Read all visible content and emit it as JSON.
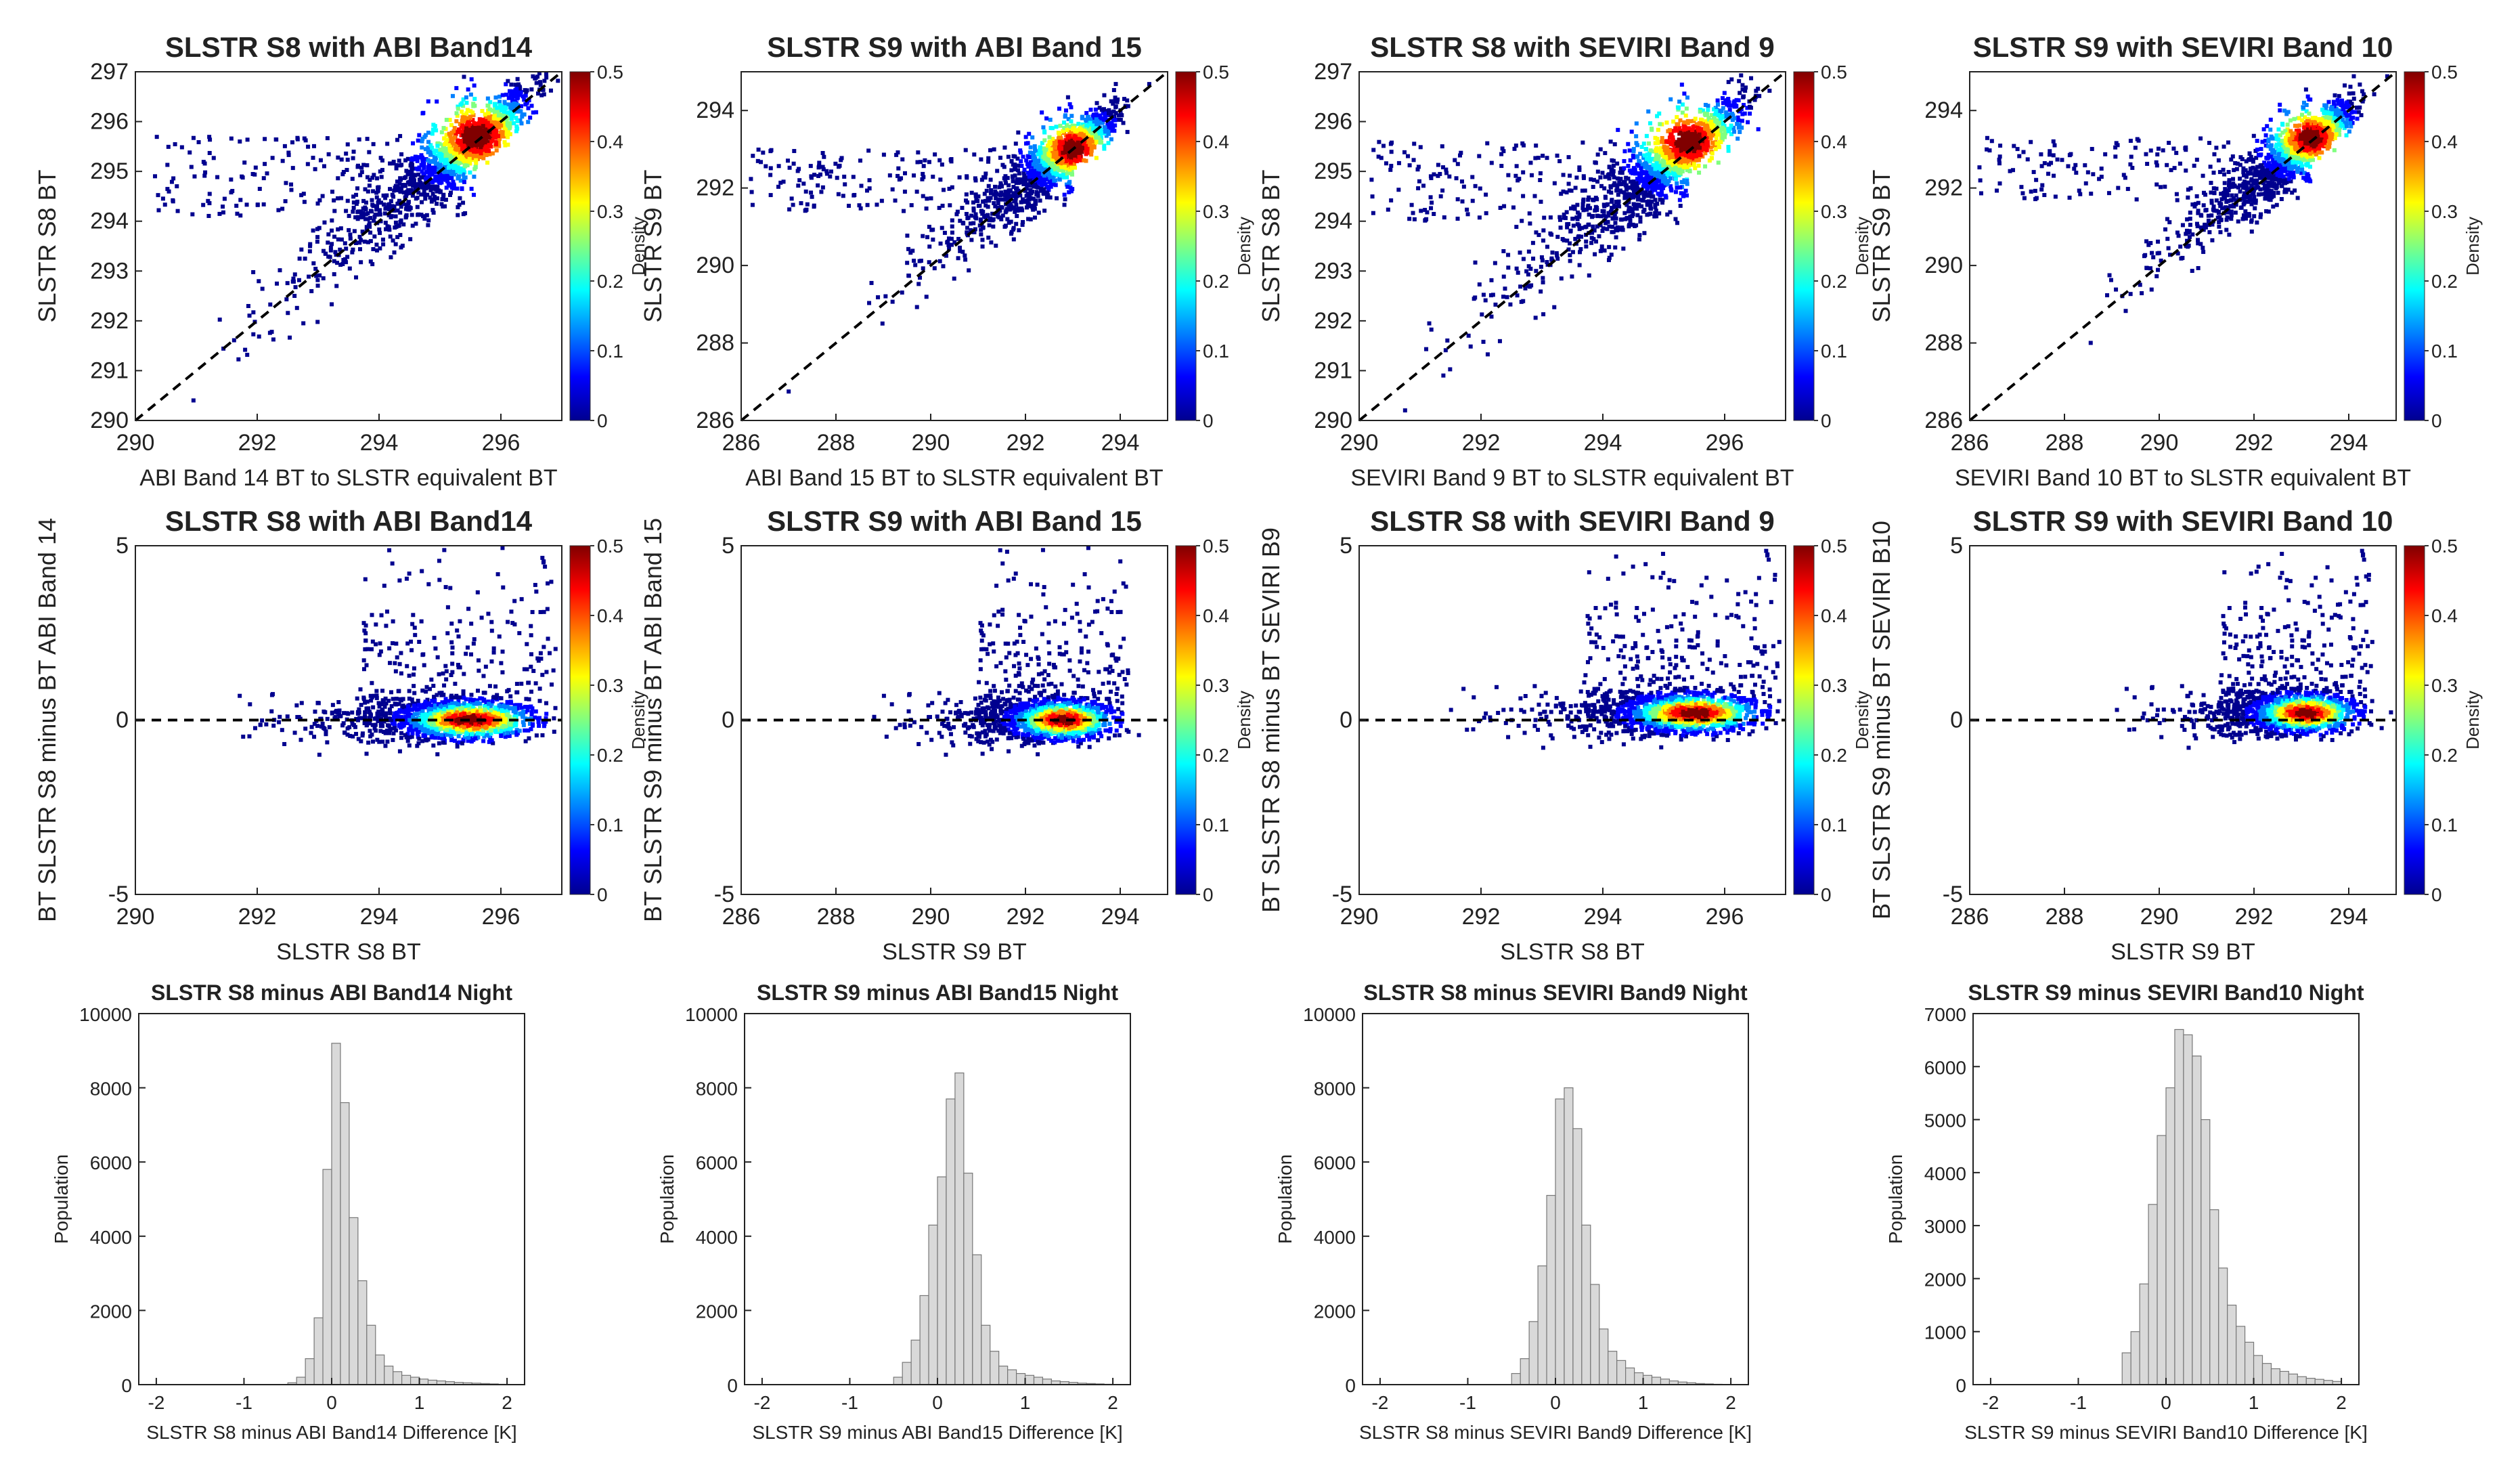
{
  "figure": {
    "colorbar_label": "Density",
    "colorbar_ticks": [
      "0",
      "0.1",
      "0.2",
      "0.3",
      "0.4",
      "0.5"
    ],
    "colorbar_stops": [
      "#00008f",
      "#0000ff",
      "#0080ff",
      "#00ffff",
      "#80ff80",
      "#ffff00",
      "#ff8000",
      "#ff0000",
      "#800000"
    ],
    "point_color": "#00008f"
  },
  "chart_data": [
    {
      "panel": "scatter",
      "type": "scatter",
      "title": "SLSTR S8 with ABI Band14",
      "xlabel": "ABI Band 14 BT to SLSTR equivalent BT",
      "ylabel": "SLSTR S8 BT",
      "xlim": [
        290,
        297
      ],
      "ylim": [
        290,
        297
      ],
      "xticks": [
        290,
        292,
        294,
        296
      ],
      "yticks": [
        290,
        291,
        292,
        293,
        294,
        295,
        296,
        297
      ],
      "center": [
        295.6,
        295.7
      ],
      "one_to_one_line": true,
      "colorbar": {
        "label": "Density",
        "range": [
          0,
          0.5
        ]
      }
    },
    {
      "panel": "scatter",
      "type": "scatter",
      "title": "SLSTR S9 with ABI Band 15",
      "xlabel": "ABI Band 15 BT to SLSTR equivalent BT",
      "ylabel": "SLSTR S9 BT",
      "xlim": [
        286,
        295
      ],
      "ylim": [
        286,
        295
      ],
      "xticks": [
        286,
        288,
        290,
        292,
        294
      ],
      "yticks": [
        286,
        288,
        290,
        292,
        294
      ],
      "center": [
        293.0,
        293.0
      ],
      "one_to_one_line": true,
      "colorbar": {
        "label": "Density",
        "range": [
          0,
          0.5
        ]
      }
    },
    {
      "panel": "scatter",
      "type": "scatter",
      "title": "SLSTR S8 with SEVIRI Band 9",
      "xlabel": "SEVIRI Band 9 BT to SLSTR equivalent BT",
      "ylabel": "SLSTR S8 BT",
      "xlim": [
        290,
        297
      ],
      "ylim": [
        290,
        297
      ],
      "xticks": [
        290,
        292,
        294,
        296
      ],
      "yticks": [
        290,
        291,
        292,
        293,
        294,
        295,
        296,
        297
      ],
      "center": [
        295.4,
        295.6
      ],
      "one_to_one_line": true,
      "colorbar": {
        "label": "Density",
        "range": [
          0,
          0.5
        ]
      }
    },
    {
      "panel": "scatter",
      "type": "scatter",
      "title": "SLSTR S9 with SEVIRI Band 10",
      "xlabel": "SEVIRI Band 10 BT to SLSTR equivalent BT",
      "ylabel": "SLSTR S9 BT",
      "xlim": [
        286,
        295
      ],
      "ylim": [
        286,
        295
      ],
      "xticks": [
        286,
        288,
        290,
        292,
        294
      ],
      "yticks": [
        286,
        288,
        290,
        292,
        294
      ],
      "center": [
        293.2,
        293.3
      ],
      "one_to_one_line": true,
      "colorbar": {
        "label": "Density",
        "range": [
          0,
          0.5
        ]
      }
    },
    {
      "panel": "difference",
      "type": "scatter",
      "title": "SLSTR S8 with ABI Band14",
      "xlabel": "SLSTR S8 BT",
      "ylabel": "BT SLSTR S8 minus BT ABI Band 14",
      "xlim": [
        290,
        297
      ],
      "ylim": [
        -5,
        5
      ],
      "xticks": [
        290,
        292,
        294,
        296
      ],
      "yticks": [
        -5,
        0,
        5
      ],
      "center": [
        295.5,
        0.0
      ],
      "zero_line": true,
      "colorbar": {
        "label": "Density",
        "range": [
          0,
          0.5
        ]
      }
    },
    {
      "panel": "difference",
      "type": "scatter",
      "title": "SLSTR S9 with ABI Band 15",
      "xlabel": "SLSTR S9 BT",
      "ylabel": "BT SLSTR S9 minus BT ABI Band 15",
      "xlim": [
        286,
        295
      ],
      "ylim": [
        -5,
        5
      ],
      "xticks": [
        286,
        288,
        290,
        292,
        294
      ],
      "yticks": [
        -5,
        0,
        5
      ],
      "center": [
        292.8,
        0.0
      ],
      "zero_line": true,
      "colorbar": {
        "label": "Density",
        "range": [
          0,
          0.5
        ]
      }
    },
    {
      "panel": "difference",
      "type": "scatter",
      "title": "SLSTR S8 with SEVIRI Band 9",
      "xlabel": "SLSTR S8 BT",
      "ylabel": "BT SLSTR S8 minus BT SEVIRI B9",
      "xlim": [
        290,
        297
      ],
      "ylim": [
        -5,
        5
      ],
      "xticks": [
        290,
        292,
        294,
        296
      ],
      "yticks": [
        -5,
        0,
        5
      ],
      "center": [
        295.5,
        0.2
      ],
      "zero_line": true,
      "colorbar": {
        "label": "Density",
        "range": [
          0,
          0.5
        ]
      }
    },
    {
      "panel": "difference",
      "type": "scatter",
      "title": "SLSTR S9 with SEVIRI Band 10",
      "xlabel": "SLSTR S9 BT",
      "ylabel": "BT SLSTR S9 minus BT SEVIRI B10",
      "xlim": [
        286,
        295
      ],
      "ylim": [
        -5,
        5
      ],
      "xticks": [
        286,
        288,
        290,
        292,
        294
      ],
      "yticks": [
        -5,
        0,
        5
      ],
      "center": [
        293.1,
        0.2
      ],
      "zero_line": true,
      "colorbar": {
        "label": "Density",
        "range": [
          0,
          0.5
        ]
      }
    },
    {
      "panel": "histogram",
      "type": "bar",
      "title": "SLSTR S8 minus ABI Band14 Night",
      "xlabel": "SLSTR S8 minus ABI Band14 Difference [K]",
      "ylabel": "Population",
      "xlim": [
        -2.2,
        2.2
      ],
      "ylim": [
        0,
        10000
      ],
      "xticks": [
        -2,
        -1,
        0,
        1,
        2
      ],
      "yticks": [
        0,
        2000,
        4000,
        6000,
        8000,
        10000
      ],
      "bin_start": -0.5,
      "bin_width": 0.1,
      "values": [
        50,
        200,
        700,
        1800,
        5800,
        9200,
        7600,
        4500,
        2800,
        1600,
        800,
        500,
        350,
        250,
        200,
        150,
        120,
        100,
        80,
        60,
        50,
        40,
        30,
        20,
        10
      ]
    },
    {
      "panel": "histogram",
      "type": "bar",
      "title": "SLSTR S9 minus ABI Band15 Night",
      "xlabel": "SLSTR S9 minus ABI Band15 Difference [K]",
      "ylabel": "Population",
      "xlim": [
        -2.2,
        2.2
      ],
      "ylim": [
        0,
        10000
      ],
      "xticks": [
        -2,
        -1,
        0,
        1,
        2
      ],
      "yticks": [
        0,
        2000,
        4000,
        6000,
        8000,
        10000
      ],
      "bin_start": -0.5,
      "bin_width": 0.1,
      "values": [
        200,
        600,
        1200,
        2400,
        4300,
        5600,
        7700,
        8400,
        5700,
        3500,
        1600,
        900,
        500,
        400,
        300,
        250,
        200,
        150,
        100,
        80,
        60,
        40,
        30,
        20,
        10
      ]
    },
    {
      "panel": "histogram",
      "type": "bar",
      "title": "SLSTR S8 minus SEVIRI Band9 Night",
      "xlabel": "SLSTR S8 minus SEVIRI Band9 Difference [K]",
      "ylabel": "Population",
      "xlim": [
        -2.2,
        2.2
      ],
      "ylim": [
        0,
        10000
      ],
      "xticks": [
        -2,
        -1,
        0,
        1,
        2
      ],
      "yticks": [
        0,
        2000,
        4000,
        6000,
        8000,
        10000
      ],
      "bin_start": -0.5,
      "bin_width": 0.1,
      "values": [
        300,
        700,
        1700,
        3200,
        5100,
        7700,
        8000,
        6900,
        4300,
        2700,
        1500,
        900,
        650,
        450,
        320,
        250,
        200,
        150,
        100,
        70,
        50,
        30,
        20,
        10,
        5
      ]
    },
    {
      "panel": "histogram",
      "type": "bar",
      "title": "SLSTR S9 minus SEVIRI Band10 Night",
      "xlabel": "SLSTR S9 minus SEVIRI Band10 Difference [K]",
      "ylabel": "Population",
      "xlim": [
        -2.2,
        2.2
      ],
      "ylim": [
        0,
        7000
      ],
      "xticks": [
        -2,
        -1,
        0,
        1,
        2
      ],
      "yticks": [
        0,
        1000,
        2000,
        3000,
        4000,
        5000,
        6000,
        7000
      ],
      "bin_start": -0.5,
      "bin_width": 0.1,
      "values": [
        600,
        1000,
        1900,
        3400,
        4700,
        5600,
        6700,
        6600,
        6200,
        5000,
        3300,
        2200,
        1500,
        1100,
        800,
        550,
        400,
        300,
        250,
        200,
        150,
        120,
        100,
        80,
        60
      ]
    }
  ]
}
